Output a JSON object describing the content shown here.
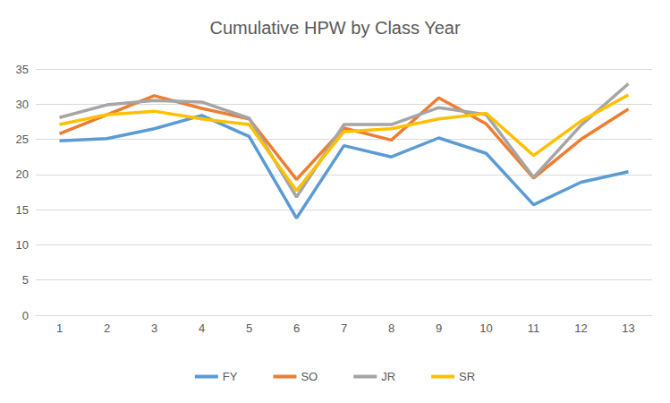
{
  "chart_data": {
    "type": "line",
    "title": "Cumulative HPW by Class Year",
    "categories": [
      "1",
      "2",
      "3",
      "4",
      "5",
      "6",
      "7",
      "8",
      "9",
      "10",
      "11",
      "12",
      "13"
    ],
    "series": [
      {
        "name": "FY",
        "color": "#5b9bd5",
        "values": [
          24.8,
          25.1,
          26.5,
          28.4,
          25.4,
          13.8,
          24.1,
          22.5,
          25.2,
          23.0,
          15.7,
          18.9,
          20.4
        ]
      },
      {
        "name": "SO",
        "color": "#ed7d31",
        "values": [
          25.8,
          28.5,
          31.2,
          29.4,
          27.9,
          19.3,
          26.6,
          24.9,
          30.9,
          27.2,
          19.5,
          25.0,
          29.3
        ]
      },
      {
        "name": "JR",
        "color": "#a5a5a5",
        "values": [
          28.1,
          29.9,
          30.5,
          30.3,
          28.0,
          16.8,
          27.1,
          27.1,
          29.5,
          28.5,
          19.6,
          27.0,
          32.9
        ]
      },
      {
        "name": "SR",
        "color": "#ffc000",
        "values": [
          27.1,
          28.5,
          29.0,
          27.9,
          27.1,
          17.7,
          26.1,
          26.5,
          27.9,
          28.7,
          22.7,
          27.6,
          31.3
        ]
      }
    ],
    "ylim": [
      0,
      35
    ],
    "yticks": [
      0,
      5,
      10,
      15,
      20,
      25,
      30,
      35
    ],
    "grid": true,
    "legend": "bottom",
    "marker": "none"
  }
}
